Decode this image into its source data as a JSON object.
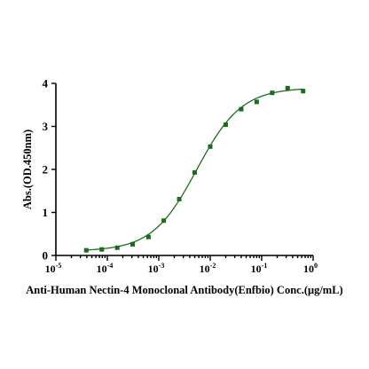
{
  "chart_data": {
    "type": "scatter",
    "title": "",
    "xlabel": "Anti-Human Nectin-4 Monoclonal Antibody(Enfbio) Conc.(μg/mL)",
    "ylabel": "Abs.(OD.450nm)",
    "xscale": "log",
    "xlim": [
      1e-05,
      1
    ],
    "ylim": [
      0,
      4
    ],
    "x_ticks": [
      {
        "base": "10",
        "exp": "-5",
        "value": 1e-05
      },
      {
        "base": "10",
        "exp": "-4",
        "value": 0.0001
      },
      {
        "base": "10",
        "exp": "-3",
        "value": 0.001
      },
      {
        "base": "10",
        "exp": "-2",
        "value": 0.01
      },
      {
        "base": "10",
        "exp": "-1",
        "value": 0.1
      },
      {
        "base": "10",
        "exp": "0",
        "value": 1
      }
    ],
    "y_ticks": [
      0,
      1,
      2,
      3,
      4
    ],
    "grid": false,
    "legend": "none",
    "series": [
      {
        "marker": "square",
        "color": "#1a6b1a",
        "points": [
          {
            "x": 3.9e-05,
            "y": 0.12
          },
          {
            "x": 7.8e-05,
            "y": 0.14
          },
          {
            "x": 0.000156,
            "y": 0.18
          },
          {
            "x": 0.00031,
            "y": 0.26
          },
          {
            "x": 0.00063,
            "y": 0.43
          },
          {
            "x": 0.00125,
            "y": 0.81
          },
          {
            "x": 0.0025,
            "y": 1.31
          },
          {
            "x": 0.005,
            "y": 1.93
          },
          {
            "x": 0.01,
            "y": 2.53
          },
          {
            "x": 0.02,
            "y": 3.04
          },
          {
            "x": 0.04,
            "y": 3.4
          },
          {
            "x": 0.08,
            "y": 3.57
          },
          {
            "x": 0.16,
            "y": 3.78
          },
          {
            "x": 0.32,
            "y": 3.89
          },
          {
            "x": 0.64,
            "y": 3.82
          }
        ]
      }
    ],
    "fit_curve": {
      "model": "4PL",
      "bottom": 0.1,
      "top": 3.9,
      "ec50": 0.0055,
      "hill": 1.0,
      "color": "#1f6e1f"
    }
  }
}
